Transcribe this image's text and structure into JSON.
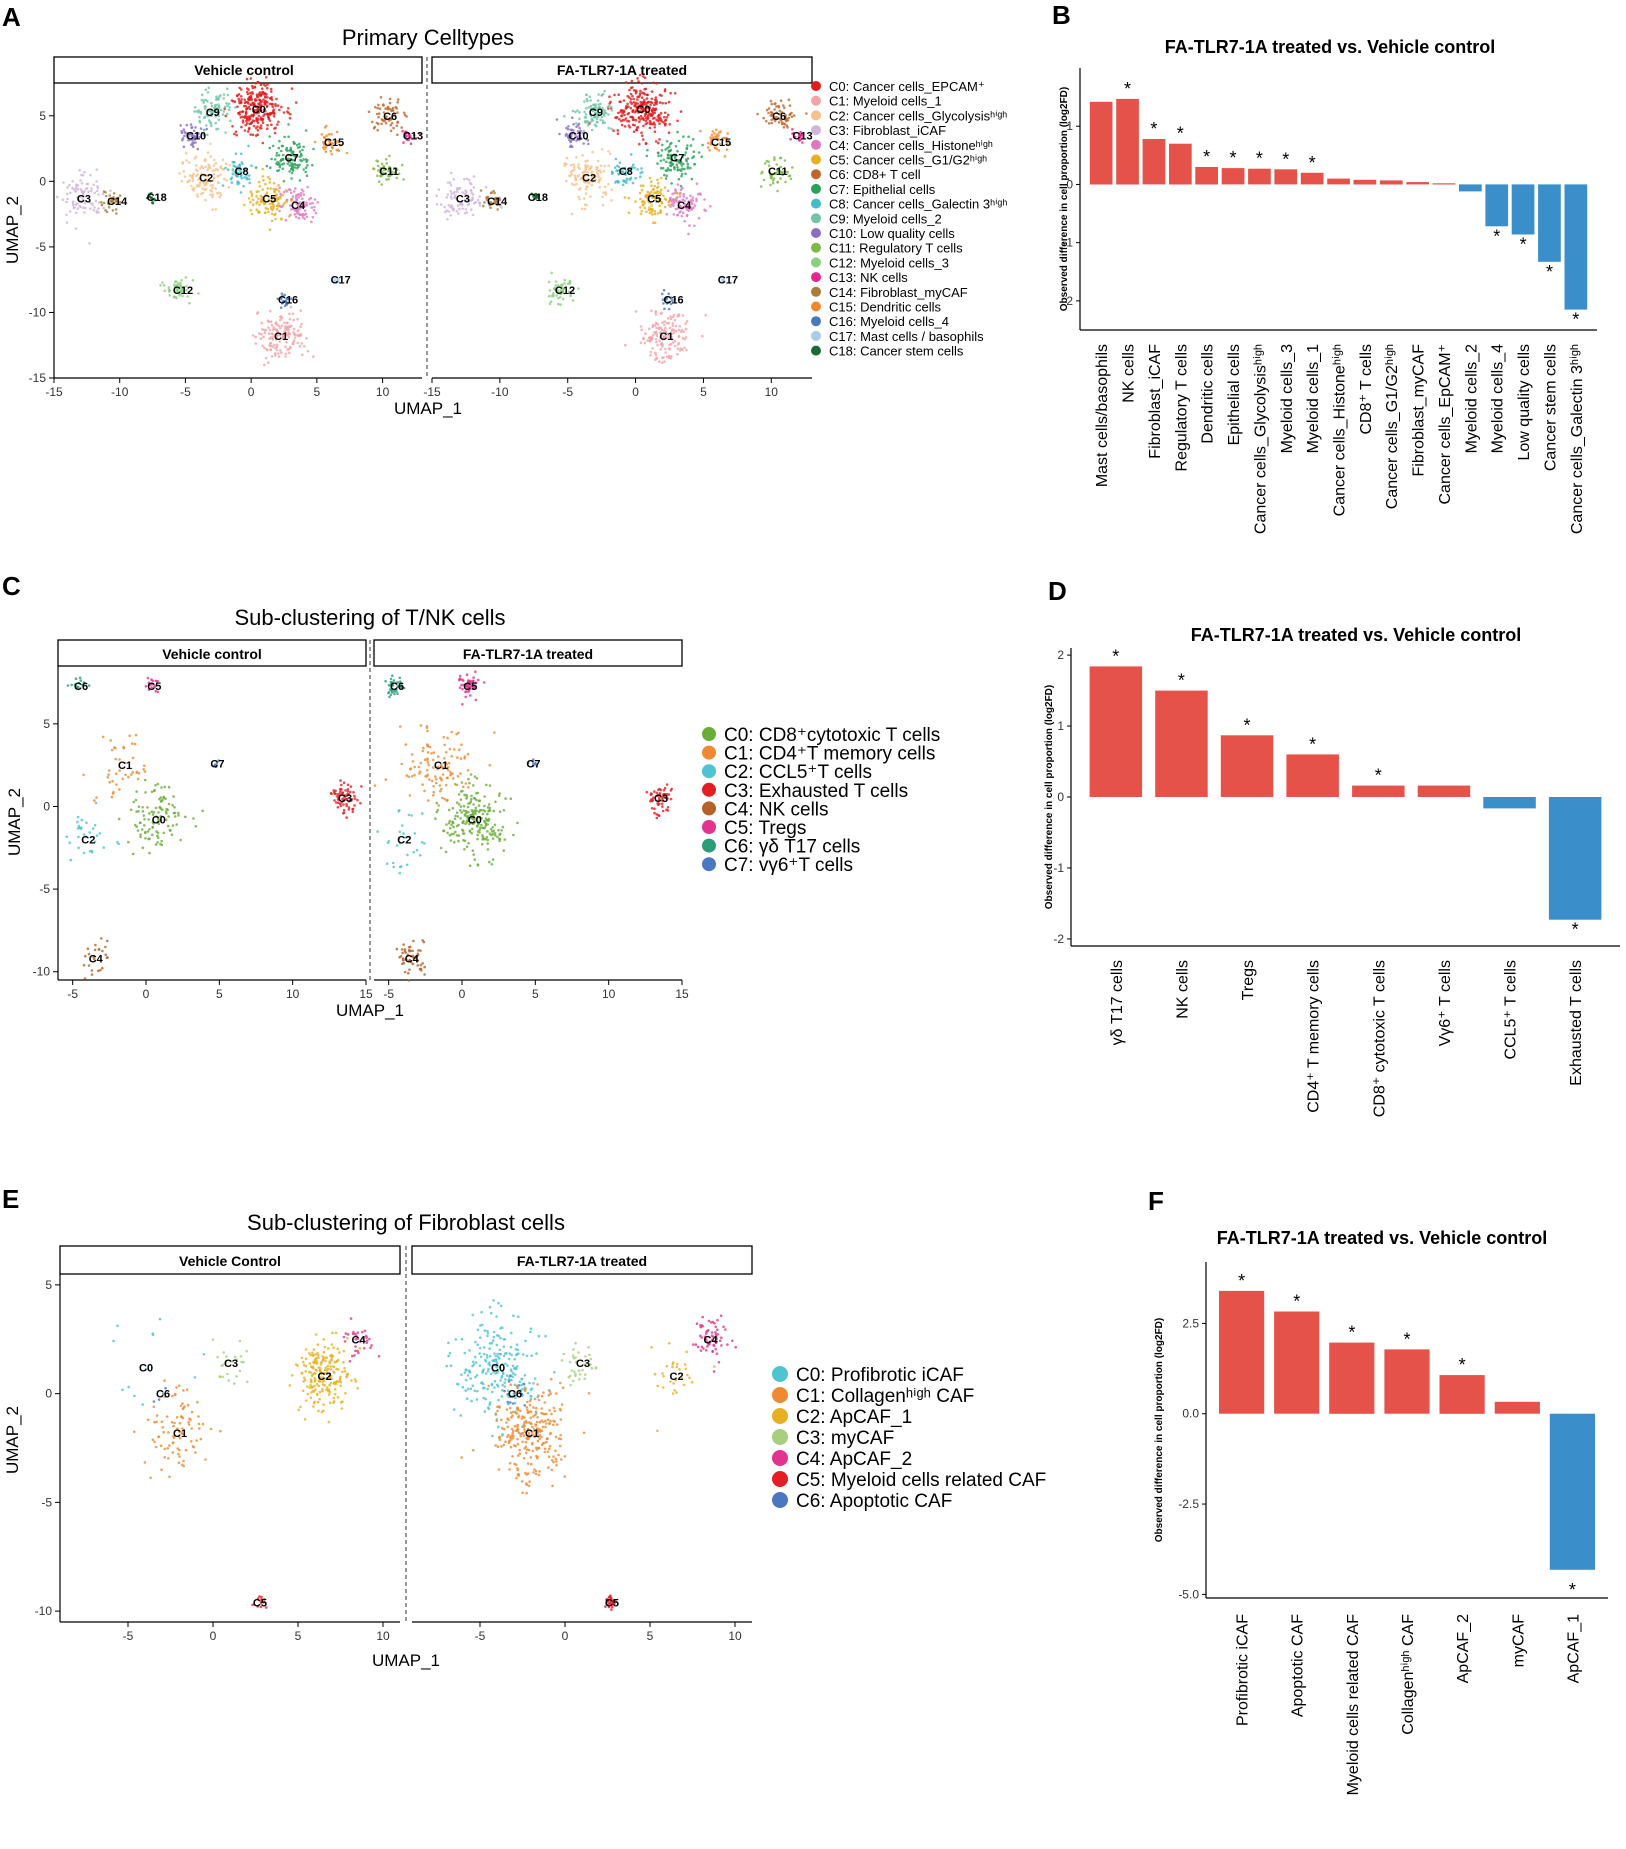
{
  "panels": {
    "A": {
      "letter": "A",
      "title": "Primary Celltypes",
      "strip_left": "Vehicle control",
      "strip_right": "FA-TLR7-1A treated",
      "xlabel": "UMAP_1",
      "ylabel": "UMAP_2"
    },
    "B": {
      "letter": "B"
    },
    "C": {
      "letter": "C",
      "title": "Sub-clustering of T/NK cells",
      "strip_left": "Vehicle control",
      "strip_right": "FA-TLR7-1A treated",
      "xlabel": "UMAP_1",
      "ylabel": "UMAP_2"
    },
    "D": {
      "letter": "D"
    },
    "E": {
      "letter": "E",
      "title": "Sub-clustering of Fibroblast cells",
      "strip_left": "Vehicle Control",
      "strip_right": "FA-TLR7-1A treated",
      "xlabel": "UMAP_1",
      "ylabel": "UMAP_2"
    },
    "F": {
      "letter": "F"
    }
  },
  "umapA": {
    "xticks": [
      "-15",
      "-10",
      "-5",
      "0",
      "5",
      "10"
    ],
    "xticks_right": [
      "-15",
      "-10",
      "-5",
      "0",
      "5",
      "10"
    ],
    "yticks": [
      "5",
      "0",
      "-5",
      "-10",
      "-15"
    ],
    "xlim": [
      -15,
      13
    ],
    "ylim": [
      -15,
      7.5
    ],
    "clusters": [
      {
        "id": "C0",
        "x": 0.5,
        "y": 5.5,
        "r": 2.2,
        "color": "#e41a1c",
        "n": 260
      },
      {
        "id": "C1",
        "x": 2.2,
        "y": -11.8,
        "r": 2.0,
        "color": "#f4a3a8",
        "n": 150
      },
      {
        "id": "C2",
        "x": -3.5,
        "y": 0.3,
        "r": 2.0,
        "color": "#f7c08a",
        "n": 120
      },
      {
        "id": "C3",
        "x": -12.8,
        "y": -1.3,
        "r": 1.9,
        "color": "#d1b5df",
        "n": 90
      },
      {
        "id": "C4",
        "x": 3.5,
        "y": -1.8,
        "r": 1.5,
        "color": "#e078c1",
        "n": 90
      },
      {
        "id": "C5",
        "x": 1.3,
        "y": -1.3,
        "r": 1.7,
        "color": "#e8b020",
        "n": 100
      },
      {
        "id": "C6",
        "x": 10.5,
        "y": 5.0,
        "r": 1.4,
        "color": "#c0662a",
        "n": 60
      },
      {
        "id": "C7",
        "x": 3.0,
        "y": 1.8,
        "r": 1.8,
        "color": "#2aa15a",
        "n": 110
      },
      {
        "id": "C8",
        "x": -0.8,
        "y": 0.8,
        "r": 1.2,
        "color": "#42bccb",
        "n": 50
      },
      {
        "id": "C9",
        "x": -3.0,
        "y": 5.3,
        "r": 1.7,
        "color": "#6fc6a5",
        "n": 90
      },
      {
        "id": "C10",
        "x": -4.5,
        "y": 3.5,
        "r": 1.0,
        "color": "#8a6fc0",
        "n": 50
      },
      {
        "id": "C11",
        "x": 10.2,
        "y": 0.8,
        "r": 1.2,
        "color": "#7cba45",
        "n": 50
      },
      {
        "id": "C12",
        "x": -5.5,
        "y": -8.3,
        "r": 1.2,
        "color": "#8ccf7e",
        "n": 50
      },
      {
        "id": "C13",
        "x": 12.0,
        "y": 3.5,
        "r": 0.6,
        "color": "#e6238e",
        "n": 20
      },
      {
        "id": "C14",
        "x": -10.5,
        "y": -1.5,
        "r": 0.9,
        "color": "#a97c3a",
        "n": 35
      },
      {
        "id": "C15",
        "x": 6.0,
        "y": 3.0,
        "r": 1.2,
        "color": "#f0892e",
        "n": 40
      },
      {
        "id": "C16",
        "x": 2.5,
        "y": -9.0,
        "r": 0.6,
        "color": "#4a78c0",
        "n": 20
      },
      {
        "id": "C17",
        "x": 6.5,
        "y": -7.5,
        "r": 0.4,
        "color": "#a9cbe8",
        "n": 8
      },
      {
        "id": "C18",
        "x": -7.5,
        "y": -1.2,
        "r": 0.5,
        "color": "#1a6b33",
        "n": 14
      }
    ],
    "legend": [
      {
        "label": "C0: Cancer cells_EPCAM⁺",
        "color": "#e41a1c"
      },
      {
        "label": "C1: Myeloid cells_1",
        "color": "#f4a3a8"
      },
      {
        "label": "C2: Cancer cells_Glycolysisʰⁱᵍʰ",
        "color": "#f7c08a"
      },
      {
        "label": "C3: Fibroblast_iCAF",
        "color": "#d1b5df"
      },
      {
        "label": "C4: Cancer cells_Histoneʰⁱᵍʰ",
        "color": "#e078c1"
      },
      {
        "label": "C5: Cancer cells_G1/G2ʰⁱᵍʰ",
        "color": "#e8b020"
      },
      {
        "label": "C6: CD8+ T cell",
        "color": "#c0662a"
      },
      {
        "label": "C7: Epithelial cells",
        "color": "#2aa15a"
      },
      {
        "label": "C8: Cancer cells_Galectin 3ʰⁱᵍʰ",
        "color": "#42bccb"
      },
      {
        "label": "C9: Myeloid cells_2",
        "color": "#6fc6a5"
      },
      {
        "label": "C10: Low quality cells",
        "color": "#8a6fc0"
      },
      {
        "label": "C11: Regulatory T cells",
        "color": "#7cba45"
      },
      {
        "label": "C12: Myeloid cells_3",
        "color": "#8ccf7e"
      },
      {
        "label": "C13: NK cells",
        "color": "#e6238e"
      },
      {
        "label": "C14: Fibroblast_myCAF",
        "color": "#a97c3a"
      },
      {
        "label": "C15: Dendritic cells",
        "color": "#f0892e"
      },
      {
        "label": "C16: Myeloid cells_4",
        "color": "#4a78c0"
      },
      {
        "label": "C17: Mast cells / basophils",
        "color": "#a9cbe8"
      },
      {
        "label": "C18: Cancer stem cells",
        "color": "#1a6b33"
      }
    ]
  },
  "umapC": {
    "xticks": [
      "-5",
      "0",
      "5",
      "10",
      "15"
    ],
    "xticks_right": [
      "-5",
      "0",
      "5",
      "10",
      "15"
    ],
    "yticks": [
      "5",
      "0",
      "-5",
      "-10"
    ],
    "xlim": [
      -6,
      15
    ],
    "ylim": [
      -10.5,
      8.5
    ],
    "clusters": [
      {
        "id": "C0",
        "x": 0.8,
        "y": -0.8,
        "r": 2.3,
        "color": "#6aae3a",
        "n": 140
      },
      {
        "id": "C1",
        "x": -1.5,
        "y": 2.5,
        "r": 2.5,
        "color": "#ef8a32",
        "n": 70
      },
      {
        "id": "C2",
        "x": -4.0,
        "y": -2.0,
        "r": 2.0,
        "color": "#4fc3d0",
        "n": 30
      },
      {
        "id": "C3",
        "x": 13.5,
        "y": 0.5,
        "r": 1.0,
        "color": "#e31e24",
        "n": 70
      },
      {
        "id": "C4",
        "x": -3.5,
        "y": -9.2,
        "r": 1.1,
        "color": "#b5622a",
        "n": 40
      },
      {
        "id": "C5",
        "x": 0.5,
        "y": 7.3,
        "r": 0.8,
        "color": "#e2338f",
        "n": 30
      },
      {
        "id": "C6",
        "x": -4.5,
        "y": 7.3,
        "r": 0.8,
        "color": "#2a9d78",
        "n": 25
      },
      {
        "id": "C7",
        "x": 4.8,
        "y": 2.6,
        "r": 0.3,
        "color": "#4a78c0",
        "n": 6
      }
    ],
    "legend": [
      {
        "label": "C0: CD8⁺cytotoxic T cells",
        "color": "#6aae3a"
      },
      {
        "label": "C1: CD4⁺T memory cells",
        "color": "#ef8a32"
      },
      {
        "label": "C2: CCL5⁺T cells",
        "color": "#4fc3d0"
      },
      {
        "label": "C3: Exhausted T cells",
        "color": "#e31e24"
      },
      {
        "label": "C4: NK cells",
        "color": "#b5622a"
      },
      {
        "label": "C5: Tregs",
        "color": "#e2338f"
      },
      {
        "label": "C6: γδ T17 cells",
        "color": "#2a9d78"
      },
      {
        "label": "C7: vγ6⁺T cells",
        "color": "#4a78c0"
      }
    ]
  },
  "umapE": {
    "xticks": [
      "-5",
      "0",
      "5",
      "10"
    ],
    "xticks_right": [
      "-5",
      "0",
      "5",
      "10"
    ],
    "yticks": [
      "5",
      "0",
      "-5",
      "-10"
    ],
    "xlim": [
      -9,
      11
    ],
    "ylim": [
      -10.5,
      5.5
    ],
    "clusters": [
      {
        "id": "C0",
        "x": -4.0,
        "y": 1.2,
        "r": 2.6,
        "color": "#4fc3d0",
        "n": 40
      },
      {
        "id": "C1",
        "x": -2.0,
        "y": -1.8,
        "r": 2.3,
        "color": "#ef8a32",
        "n": 90
      },
      {
        "id": "C2",
        "x": 6.5,
        "y": 0.8,
        "r": 1.8,
        "color": "#e8b020",
        "n": 150
      },
      {
        "id": "C3",
        "x": 1.0,
        "y": 1.4,
        "r": 1.2,
        "color": "#a8cf7e",
        "n": 30
      },
      {
        "id": "C4",
        "x": 8.5,
        "y": 2.5,
        "r": 1.0,
        "color": "#e2338f",
        "n": 40
      },
      {
        "id": "C5",
        "x": 2.7,
        "y": -9.6,
        "r": 0.4,
        "color": "#e31e24",
        "n": 12
      },
      {
        "id": "C6",
        "x": -3.0,
        "y": 0.0,
        "r": 0.8,
        "color": "#4a78c0",
        "n": 10
      }
    ],
    "legend": [
      {
        "label": "C0: Profibrotic iCAF",
        "color": "#4fc3d0"
      },
      {
        "label": "C1: Collagenʰⁱᵍʰ CAF",
        "color": "#ef8a32"
      },
      {
        "label": "C2: ApCAF_1",
        "color": "#e8b020"
      },
      {
        "label": "C3: myCAF",
        "color": "#a8cf7e"
      },
      {
        "label": "C4: ApCAF_2",
        "color": "#e2338f"
      },
      {
        "label": "C5: Myeloid cells related CAF",
        "color": "#e31e24"
      },
      {
        "label": "C6: Apoptotic CAF",
        "color": "#4a78c0"
      }
    ]
  },
  "chart_data": [
    {
      "id": "B",
      "type": "bar",
      "title": "FA-TLR7-1A treated vs. Vehicle control",
      "ylabel": "Observed difference in cell proportion (log2FD)",
      "xlabel": "",
      "ylim": [
        -2.5,
        2.0
      ],
      "yticks": [
        1,
        0,
        -1,
        -2
      ],
      "categories": [
        "Mast cells/basophils",
        "NK cells",
        "Fibroblast_iCAF",
        "Regulatory T cells",
        "Dendritic cells",
        "Epithelial cells",
        "Cancer cells_Glycolysisʰⁱᵍʰ",
        "Myeloid cells_3",
        "Myeloid cells_1",
        "Cancer cells_Histoneʰⁱᵍʰ",
        "CD8⁺ T cells",
        "Cancer cells_G1/G2ʰⁱᵍʰ",
        "Fibroblast_myCAF",
        "Cancer cells_EpCAM⁺",
        "Myeloid cells_2",
        "Myeloid cells_4",
        "Low quality cells",
        "Cancer stem cells",
        "Cancer cells_Galectin 3ʰⁱᵍʰ"
      ],
      "values": [
        1.42,
        1.47,
        0.78,
        0.7,
        0.3,
        0.28,
        0.27,
        0.26,
        0.2,
        0.1,
        0.08,
        0.07,
        0.04,
        0.02,
        -0.12,
        -0.72,
        -0.86,
        -1.33,
        -2.15
      ],
      "significant": [
        false,
        true,
        true,
        true,
        true,
        true,
        true,
        true,
        true,
        false,
        false,
        false,
        false,
        false,
        false,
        true,
        true,
        true,
        true
      ],
      "colors": {
        "positive": "#e5524a",
        "negative": "#3a8fcb"
      }
    },
    {
      "id": "D",
      "type": "bar",
      "title": "FA-TLR7-1A treated vs. Vehicle control",
      "ylabel": "Observed difference in cell proportion (log2FD)",
      "xlabel": "",
      "ylim": [
        -2.1,
        2.1
      ],
      "yticks": [
        2,
        1,
        0,
        -1,
        -2
      ],
      "categories": [
        "γδ T17 cells",
        "NK cells",
        "Tregs",
        "CD4⁺ T memory cells",
        "CD8⁺ cytotoxic T cells",
        "Vγ6⁺ T cells",
        "CCL5⁺ T cells",
        "Exhausted T cells"
      ],
      "values": [
        1.84,
        1.5,
        0.87,
        0.6,
        0.16,
        0.16,
        -0.16,
        -1.73
      ],
      "significant": [
        true,
        true,
        true,
        true,
        true,
        false,
        false,
        true
      ],
      "colors": {
        "positive": "#e5524a",
        "negative": "#3a8fcb"
      }
    },
    {
      "id": "F",
      "type": "bar",
      "title": "FA-TLR7-1A treated vs. Vehicle control",
      "ylabel": "Observed difference in cell proportion (log2FD)",
      "xlabel": "",
      "ylim": [
        -5.1,
        4.2
      ],
      "yticks": [
        2.5,
        0.0,
        -2.5,
        -5.0
      ],
      "ytick_labels": [
        "2.5",
        "0.0",
        "-2.5",
        "-5.0"
      ],
      "categories": [
        "Profibrotic iCAF",
        "Apoptotic CAF",
        "Myeloid cells related CAF",
        "Collagenʰⁱᵍʰ CAF",
        "ApCAF_2",
        "myCAF",
        "ApCAF_1"
      ],
      "values": [
        3.4,
        2.83,
        1.97,
        1.78,
        1.07,
        0.33,
        -4.32
      ],
      "significant": [
        true,
        true,
        true,
        true,
        true,
        false,
        true
      ],
      "colors": {
        "positive": "#e5524a",
        "negative": "#3a8fcb"
      }
    }
  ]
}
